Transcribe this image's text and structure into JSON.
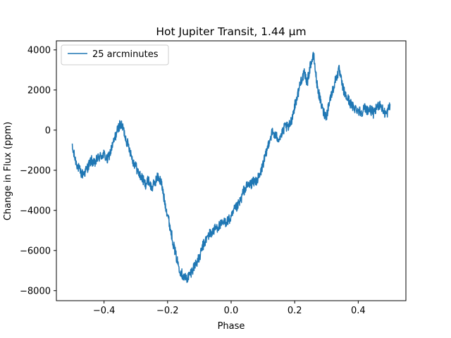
{
  "chart_data": {
    "type": "line",
    "title": "Hot Jupiter Transit, 1.44 µm",
    "xlabel": "Phase",
    "ylabel": "Change in Flux (ppm)",
    "xlim": [
      -0.55,
      0.55
    ],
    "ylim": [
      -8500,
      4450
    ],
    "xticks": [
      -0.4,
      -0.2,
      0.0,
      0.2,
      0.4
    ],
    "xtick_labels": [
      "−0.4",
      "−0.2",
      "0.0",
      "0.2",
      "0.4"
    ],
    "yticks": [
      -8000,
      -6000,
      -4000,
      -2000,
      0,
      2000,
      4000
    ],
    "ytick_labels": [
      "−8000",
      "−6000",
      "−4000",
      "−2000",
      "0",
      "2000",
      "4000"
    ],
    "grid": false,
    "legend_position": "upper-left",
    "noise_amplitude_ppm": 260,
    "series": [
      {
        "name": "25 arcminutes",
        "color": "#1f77b4",
        "x": [
          -0.5,
          -0.49,
          -0.48,
          -0.47,
          -0.46,
          -0.45,
          -0.44,
          -0.43,
          -0.42,
          -0.41,
          -0.4,
          -0.39,
          -0.38,
          -0.37,
          -0.36,
          -0.35,
          -0.34,
          -0.33,
          -0.32,
          -0.31,
          -0.3,
          -0.29,
          -0.28,
          -0.27,
          -0.26,
          -0.25,
          -0.24,
          -0.23,
          -0.22,
          -0.21,
          -0.2,
          -0.19,
          -0.18,
          -0.17,
          -0.16,
          -0.15,
          -0.14,
          -0.13,
          -0.12,
          -0.11,
          -0.1,
          -0.09,
          -0.08,
          -0.07,
          -0.06,
          -0.05,
          -0.04,
          -0.03,
          -0.02,
          -0.01,
          0.0,
          0.01,
          0.02,
          0.03,
          0.04,
          0.05,
          0.06,
          0.07,
          0.08,
          0.09,
          0.1,
          0.11,
          0.12,
          0.13,
          0.14,
          0.15,
          0.16,
          0.17,
          0.18,
          0.19,
          0.2,
          0.21,
          0.22,
          0.23,
          0.24,
          0.25,
          0.26,
          0.27,
          0.28,
          0.29,
          0.3,
          0.31,
          0.32,
          0.33,
          0.34,
          0.35,
          0.36,
          0.37,
          0.38,
          0.39,
          0.4,
          0.41,
          0.42,
          0.43,
          0.44,
          0.45,
          0.46,
          0.47,
          0.48,
          0.49,
          0.5
        ],
        "y": [
          -900,
          -1500,
          -1900,
          -2200,
          -2100,
          -1800,
          -1500,
          -1700,
          -1400,
          -1300,
          -1200,
          -1500,
          -1100,
          -600,
          -100,
          300,
          100,
          -500,
          -900,
          -1500,
          -1800,
          -2200,
          -2400,
          -2700,
          -2500,
          -2900,
          -2600,
          -2300,
          -2600,
          -3500,
          -4200,
          -5000,
          -5800,
          -6500,
          -7000,
          -7300,
          -7400,
          -7200,
          -6900,
          -6600,
          -6400,
          -5800,
          -5500,
          -5200,
          -5100,
          -4900,
          -4800,
          -4700,
          -4600,
          -4500,
          -4400,
          -4000,
          -3800,
          -3500,
          -3000,
          -2800,
          -2700,
          -2600,
          -2500,
          -2300,
          -1700,
          -1200,
          -500,
          -100,
          -300,
          -400,
          -200,
          200,
          100,
          500,
          1200,
          1800,
          2500,
          2800,
          2400,
          3300,
          3700,
          2300,
          1500,
          900,
          700,
          1500,
          2000,
          2600,
          3000,
          2200,
          1700,
          1500,
          1200,
          1100,
          1000,
          900,
          1100,
          1000,
          1000,
          800,
          1200,
          1300,
          900,
          800,
          1300
        ]
      }
    ]
  }
}
